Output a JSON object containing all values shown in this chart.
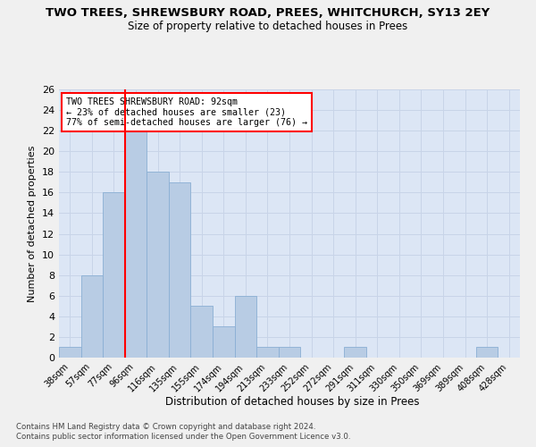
{
  "title": "TWO TREES, SHREWSBURY ROAD, PREES, WHITCHURCH, SY13 2EY",
  "subtitle": "Size of property relative to detached houses in Prees",
  "xlabel": "Distribution of detached houses by size in Prees",
  "ylabel": "Number of detached properties",
  "categories": [
    "38sqm",
    "57sqm",
    "77sqm",
    "96sqm",
    "116sqm",
    "135sqm",
    "155sqm",
    "174sqm",
    "194sqm",
    "213sqm",
    "233sqm",
    "252sqm",
    "272sqm",
    "291sqm",
    "311sqm",
    "330sqm",
    "350sqm",
    "369sqm",
    "389sqm",
    "408sqm",
    "428sqm"
  ],
  "values": [
    1,
    8,
    16,
    22,
    18,
    17,
    5,
    3,
    6,
    1,
    1,
    0,
    0,
    1,
    0,
    0,
    0,
    0,
    0,
    1,
    0
  ],
  "bar_color": "#b8cce4",
  "bar_edge_color": "#8aafd4",
  "redline_index": 2.5,
  "redline_label": "TWO TREES SHREWSBURY ROAD: 92sqm",
  "annotation_line1": "← 23% of detached houses are smaller (23)",
  "annotation_line2": "77% of semi-detached houses are larger (76) →",
  "ylim": [
    0,
    26
  ],
  "yticks": [
    0,
    2,
    4,
    6,
    8,
    10,
    12,
    14,
    16,
    18,
    20,
    22,
    24,
    26
  ],
  "grid_color": "#c8d4e8",
  "background_color": "#dce6f5",
  "fig_facecolor": "#f0f0f0",
  "footer_line1": "Contains HM Land Registry data © Crown copyright and database right 2024.",
  "footer_line2": "Contains public sector information licensed under the Open Government Licence v3.0."
}
